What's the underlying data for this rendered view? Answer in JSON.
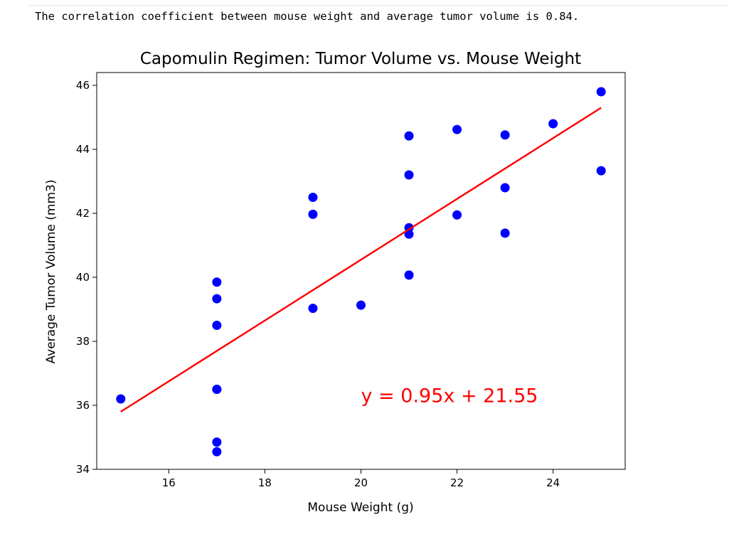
{
  "output": {
    "text": "The correlation coefficient between mouse weight and average tumor volume is 0.84."
  },
  "colors": {
    "points": "#0000ff",
    "regression": "#ff0000",
    "axes": "#000000"
  },
  "chart_data": {
    "type": "scatter",
    "title": "Capomulin Regimen: Tumor Volume vs. Mouse Weight",
    "xlabel": "Mouse Weight (g)",
    "ylabel": "Average Tumor Volume (mm3)",
    "xlim": [
      14.5,
      25.5
    ],
    "ylim": [
      34,
      46.4
    ],
    "xticks": [
      16,
      18,
      20,
      22,
      24
    ],
    "yticks": [
      34,
      36,
      38,
      40,
      42,
      44,
      46
    ],
    "grid": false,
    "series": [
      {
        "x": [
          15,
          17,
          17,
          17,
          17,
          17,
          17,
          17,
          19,
          19,
          19,
          20,
          21,
          21,
          21,
          21,
          21,
          22,
          22,
          23,
          23,
          23,
          24,
          25,
          25
        ],
        "y": [
          36.2,
          39.85,
          39.33,
          38.5,
          36.5,
          34.85,
          34.55,
          36.5,
          42.5,
          41.97,
          39.03,
          39.13,
          44.42,
          43.2,
          41.55,
          41.35,
          40.07,
          44.62,
          41.95,
          44.45,
          42.8,
          41.38,
          44.8,
          45.8,
          43.33
        ]
      }
    ],
    "regression": {
      "slope": 0.95,
      "intercept": 21.55,
      "x_range": [
        15,
        25
      ],
      "equation": "y = 0.95x + 21.55",
      "label_anchor": [
        20,
        36.1
      ]
    }
  }
}
